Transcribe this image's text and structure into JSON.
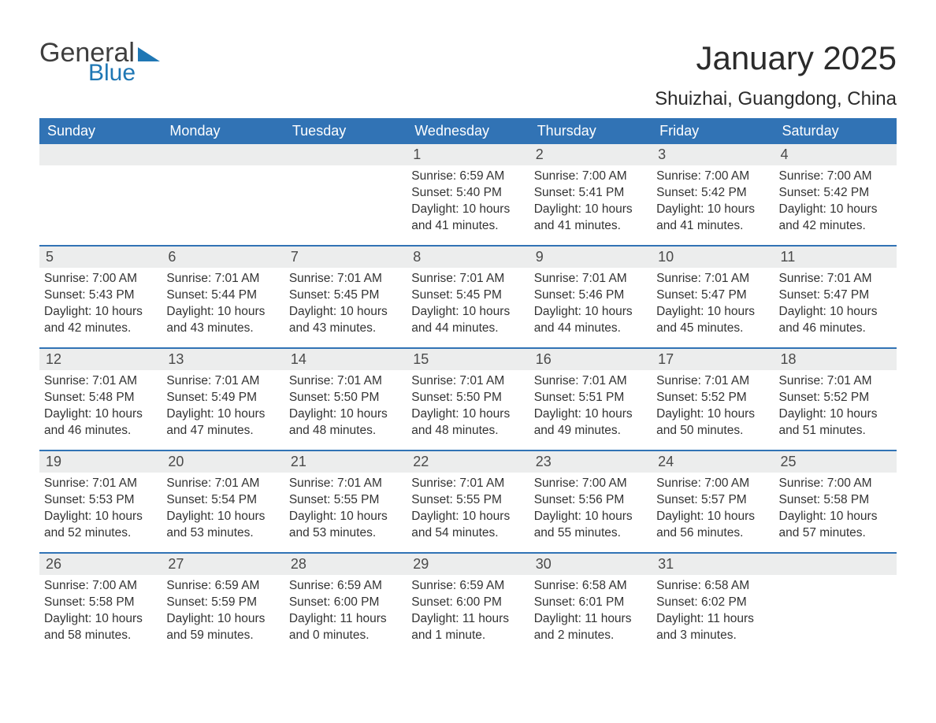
{
  "brand": {
    "part1": "General",
    "part2": "Blue",
    "logo_color": "#1f77b4"
  },
  "title": "January 2025",
  "location": "Shuizhai, Guangdong, China",
  "colors": {
    "header_bg": "#3173b5",
    "header_text": "#ffffff",
    "daynum_bg": "#eceded",
    "rule": "#3173b5",
    "text": "#333333"
  },
  "typography": {
    "title_fontsize": 42,
    "location_fontsize": 24,
    "dayname_fontsize": 18,
    "daynum_fontsize": 18,
    "body_fontsize": 15.5
  },
  "day_names": [
    "Sunday",
    "Monday",
    "Tuesday",
    "Wednesday",
    "Thursday",
    "Friday",
    "Saturday"
  ],
  "weeks": [
    [
      {
        "n": "",
        "sunrise": "",
        "sunset": "",
        "daylight": ""
      },
      {
        "n": "",
        "sunrise": "",
        "sunset": "",
        "daylight": ""
      },
      {
        "n": "",
        "sunrise": "",
        "sunset": "",
        "daylight": ""
      },
      {
        "n": "1",
        "sunrise": "Sunrise: 6:59 AM",
        "sunset": "Sunset: 5:40 PM",
        "daylight": "Daylight: 10 hours and 41 minutes."
      },
      {
        "n": "2",
        "sunrise": "Sunrise: 7:00 AM",
        "sunset": "Sunset: 5:41 PM",
        "daylight": "Daylight: 10 hours and 41 minutes."
      },
      {
        "n": "3",
        "sunrise": "Sunrise: 7:00 AM",
        "sunset": "Sunset: 5:42 PM",
        "daylight": "Daylight: 10 hours and 41 minutes."
      },
      {
        "n": "4",
        "sunrise": "Sunrise: 7:00 AM",
        "sunset": "Sunset: 5:42 PM",
        "daylight": "Daylight: 10 hours and 42 minutes."
      }
    ],
    [
      {
        "n": "5",
        "sunrise": "Sunrise: 7:00 AM",
        "sunset": "Sunset: 5:43 PM",
        "daylight": "Daylight: 10 hours and 42 minutes."
      },
      {
        "n": "6",
        "sunrise": "Sunrise: 7:01 AM",
        "sunset": "Sunset: 5:44 PM",
        "daylight": "Daylight: 10 hours and 43 minutes."
      },
      {
        "n": "7",
        "sunrise": "Sunrise: 7:01 AM",
        "sunset": "Sunset: 5:45 PM",
        "daylight": "Daylight: 10 hours and 43 minutes."
      },
      {
        "n": "8",
        "sunrise": "Sunrise: 7:01 AM",
        "sunset": "Sunset: 5:45 PM",
        "daylight": "Daylight: 10 hours and 44 minutes."
      },
      {
        "n": "9",
        "sunrise": "Sunrise: 7:01 AM",
        "sunset": "Sunset: 5:46 PM",
        "daylight": "Daylight: 10 hours and 44 minutes."
      },
      {
        "n": "10",
        "sunrise": "Sunrise: 7:01 AM",
        "sunset": "Sunset: 5:47 PM",
        "daylight": "Daylight: 10 hours and 45 minutes."
      },
      {
        "n": "11",
        "sunrise": "Sunrise: 7:01 AM",
        "sunset": "Sunset: 5:47 PM",
        "daylight": "Daylight: 10 hours and 46 minutes."
      }
    ],
    [
      {
        "n": "12",
        "sunrise": "Sunrise: 7:01 AM",
        "sunset": "Sunset: 5:48 PM",
        "daylight": "Daylight: 10 hours and 46 minutes."
      },
      {
        "n": "13",
        "sunrise": "Sunrise: 7:01 AM",
        "sunset": "Sunset: 5:49 PM",
        "daylight": "Daylight: 10 hours and 47 minutes."
      },
      {
        "n": "14",
        "sunrise": "Sunrise: 7:01 AM",
        "sunset": "Sunset: 5:50 PM",
        "daylight": "Daylight: 10 hours and 48 minutes."
      },
      {
        "n": "15",
        "sunrise": "Sunrise: 7:01 AM",
        "sunset": "Sunset: 5:50 PM",
        "daylight": "Daylight: 10 hours and 48 minutes."
      },
      {
        "n": "16",
        "sunrise": "Sunrise: 7:01 AM",
        "sunset": "Sunset: 5:51 PM",
        "daylight": "Daylight: 10 hours and 49 minutes."
      },
      {
        "n": "17",
        "sunrise": "Sunrise: 7:01 AM",
        "sunset": "Sunset: 5:52 PM",
        "daylight": "Daylight: 10 hours and 50 minutes."
      },
      {
        "n": "18",
        "sunrise": "Sunrise: 7:01 AM",
        "sunset": "Sunset: 5:52 PM",
        "daylight": "Daylight: 10 hours and 51 minutes."
      }
    ],
    [
      {
        "n": "19",
        "sunrise": "Sunrise: 7:01 AM",
        "sunset": "Sunset: 5:53 PM",
        "daylight": "Daylight: 10 hours and 52 minutes."
      },
      {
        "n": "20",
        "sunrise": "Sunrise: 7:01 AM",
        "sunset": "Sunset: 5:54 PM",
        "daylight": "Daylight: 10 hours and 53 minutes."
      },
      {
        "n": "21",
        "sunrise": "Sunrise: 7:01 AM",
        "sunset": "Sunset: 5:55 PM",
        "daylight": "Daylight: 10 hours and 53 minutes."
      },
      {
        "n": "22",
        "sunrise": "Sunrise: 7:01 AM",
        "sunset": "Sunset: 5:55 PM",
        "daylight": "Daylight: 10 hours and 54 minutes."
      },
      {
        "n": "23",
        "sunrise": "Sunrise: 7:00 AM",
        "sunset": "Sunset: 5:56 PM",
        "daylight": "Daylight: 10 hours and 55 minutes."
      },
      {
        "n": "24",
        "sunrise": "Sunrise: 7:00 AM",
        "sunset": "Sunset: 5:57 PM",
        "daylight": "Daylight: 10 hours and 56 minutes."
      },
      {
        "n": "25",
        "sunrise": "Sunrise: 7:00 AM",
        "sunset": "Sunset: 5:58 PM",
        "daylight": "Daylight: 10 hours and 57 minutes."
      }
    ],
    [
      {
        "n": "26",
        "sunrise": "Sunrise: 7:00 AM",
        "sunset": "Sunset: 5:58 PM",
        "daylight": "Daylight: 10 hours and 58 minutes."
      },
      {
        "n": "27",
        "sunrise": "Sunrise: 6:59 AM",
        "sunset": "Sunset: 5:59 PM",
        "daylight": "Daylight: 10 hours and 59 minutes."
      },
      {
        "n": "28",
        "sunrise": "Sunrise: 6:59 AM",
        "sunset": "Sunset: 6:00 PM",
        "daylight": "Daylight: 11 hours and 0 minutes."
      },
      {
        "n": "29",
        "sunrise": "Sunrise: 6:59 AM",
        "sunset": "Sunset: 6:00 PM",
        "daylight": "Daylight: 11 hours and 1 minute."
      },
      {
        "n": "30",
        "sunrise": "Sunrise: 6:58 AM",
        "sunset": "Sunset: 6:01 PM",
        "daylight": "Daylight: 11 hours and 2 minutes."
      },
      {
        "n": "31",
        "sunrise": "Sunrise: 6:58 AM",
        "sunset": "Sunset: 6:02 PM",
        "daylight": "Daylight: 11 hours and 3 minutes."
      },
      {
        "n": "",
        "sunrise": "",
        "sunset": "",
        "daylight": ""
      }
    ]
  ]
}
